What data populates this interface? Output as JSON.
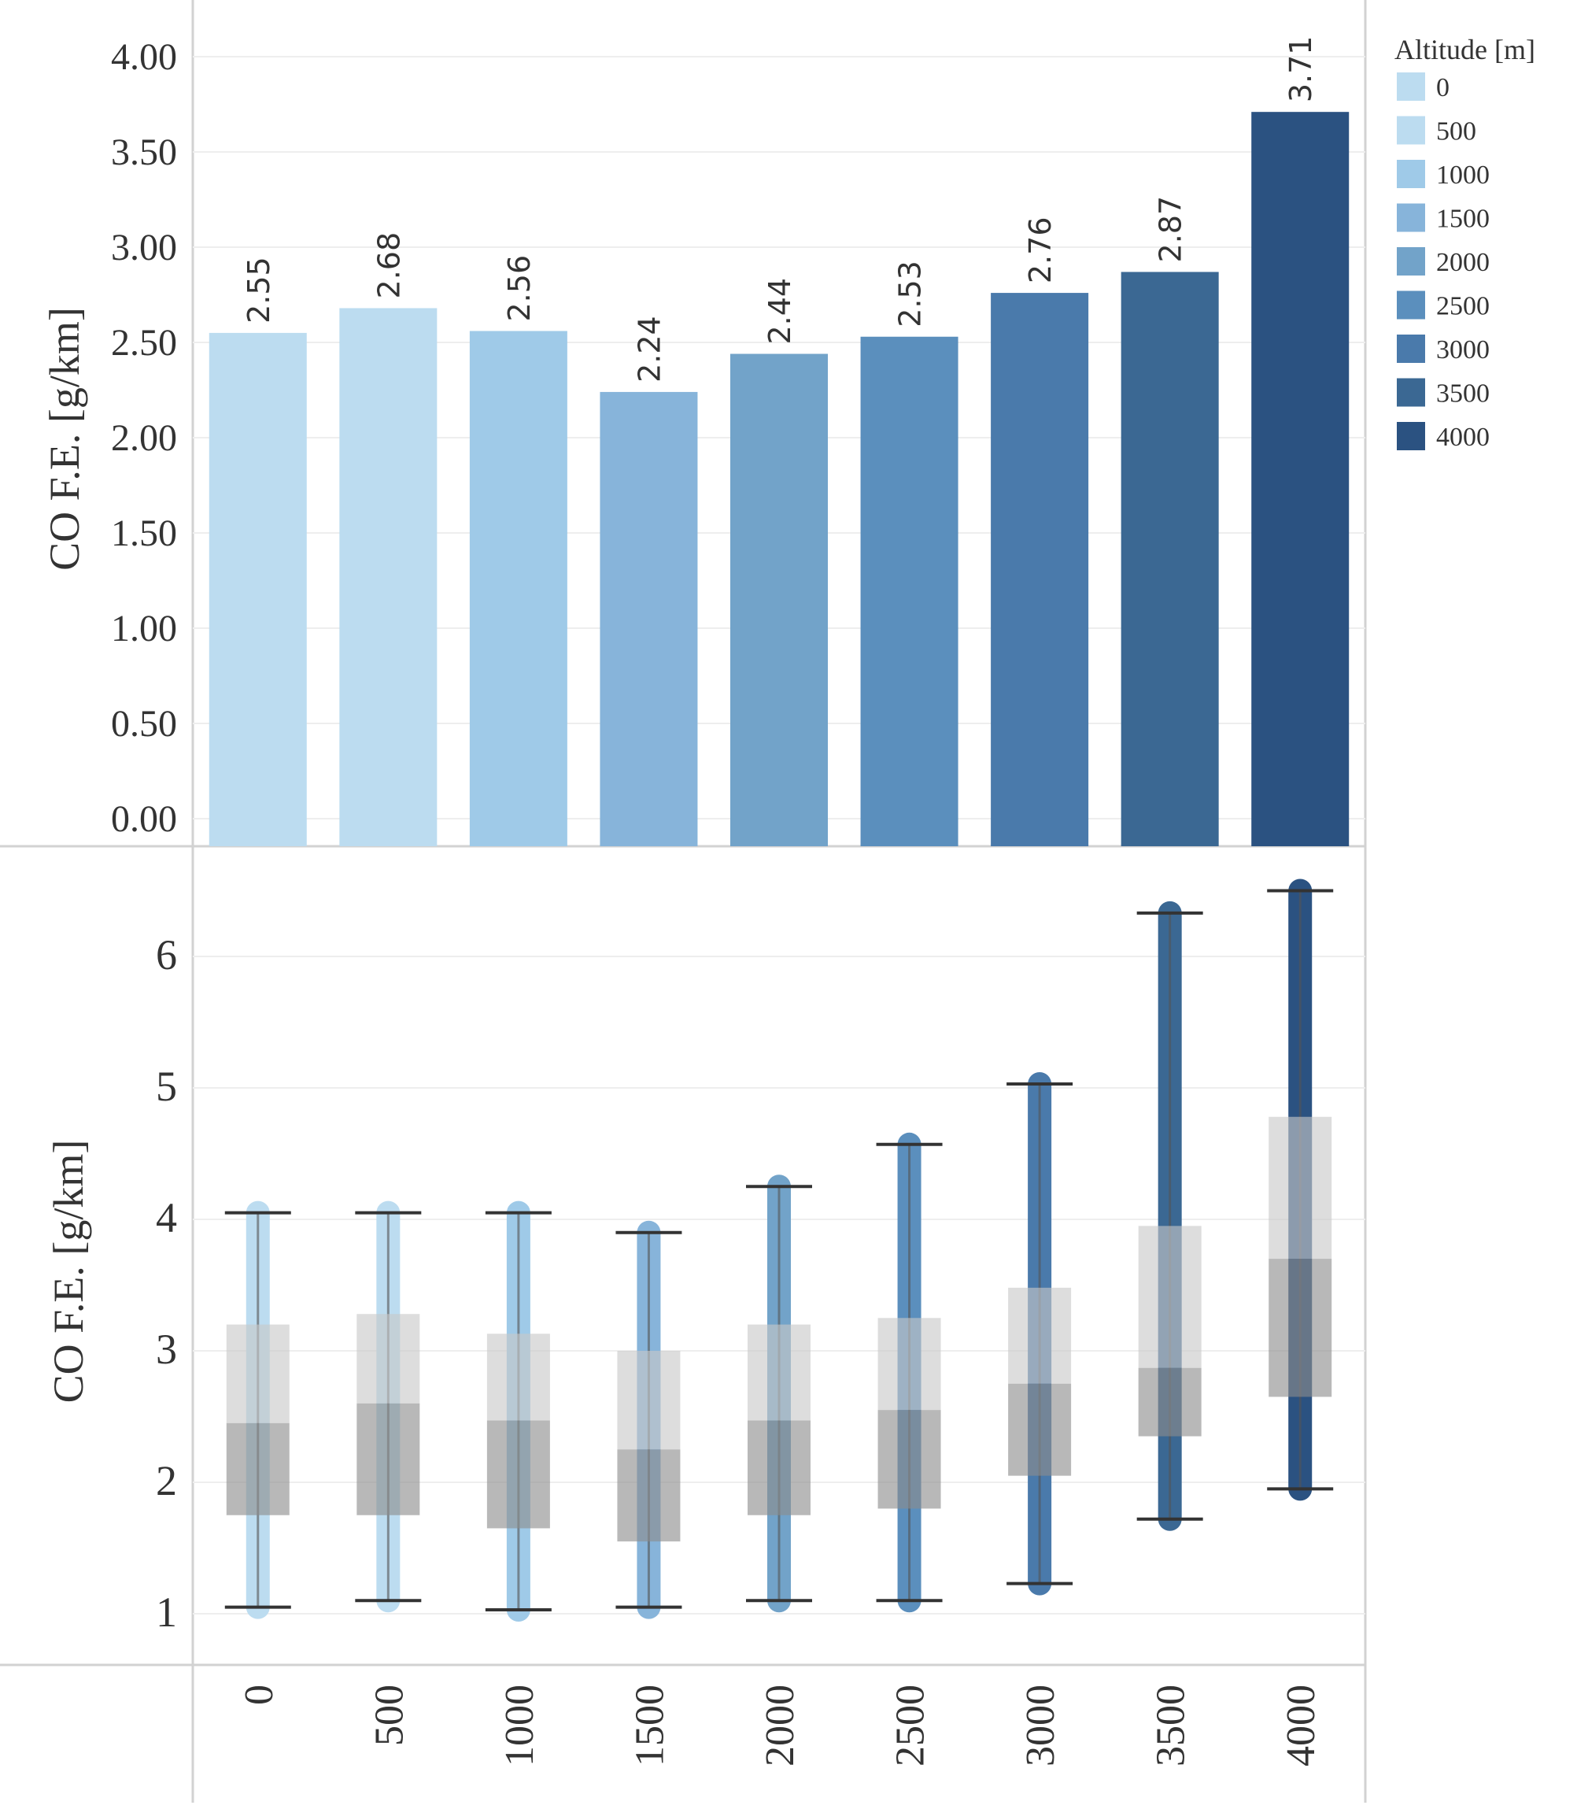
{
  "chart_data": [
    {
      "type": "bar",
      "ylabel": "CO F.E. [g/km]",
      "ylim": [
        0,
        4.0
      ],
      "yticks": [
        "0.00",
        "0.50",
        "1.00",
        "1.50",
        "2.00",
        "2.50",
        "3.00",
        "3.50",
        "4.00"
      ],
      "categories": [
        "0",
        "500",
        "1000",
        "1500",
        "2000",
        "2500",
        "3000",
        "3500",
        "4000"
      ],
      "values": [
        2.55,
        2.68,
        2.56,
        2.24,
        2.44,
        2.53,
        2.76,
        2.87,
        3.71
      ],
      "data_labels": [
        "2.55",
        "2.68",
        "2.56",
        "2.24",
        "2.44",
        "2.53",
        "2.76",
        "2.87",
        "3.71"
      ],
      "colors": [
        "#bcdcf0",
        "#bcdcf0",
        "#9fcae8",
        "#87b4da",
        "#72a3c9",
        "#5b8fbd",
        "#4a7aab",
        "#3b6893",
        "#2b5281"
      ],
      "legend": {
        "title": "Altitude [m]",
        "placement": "right",
        "items": [
          "0",
          "500",
          "1000",
          "1500",
          "2000",
          "2500",
          "3000",
          "3500",
          "4000"
        ]
      }
    },
    {
      "type": "box",
      "ylabel": "CO F.E. [g/km]",
      "ylim": [
        0.7,
        6.6
      ],
      "yticks": [
        "1",
        "2",
        "3",
        "4",
        "5",
        "6"
      ],
      "categories": [
        "0",
        "500",
        "1000",
        "1500",
        "2000",
        "2500",
        "3000",
        "3500",
        "4000"
      ],
      "xlabel": "",
      "boxes": [
        {
          "min": 1.05,
          "q1": 1.75,
          "median": 2.45,
          "q3": 3.2,
          "max": 4.05
        },
        {
          "min": 1.1,
          "q1": 1.75,
          "median": 2.6,
          "q3": 3.28,
          "max": 4.05
        },
        {
          "min": 1.03,
          "q1": 1.65,
          "median": 2.47,
          "q3": 3.13,
          "max": 4.05
        },
        {
          "min": 1.05,
          "q1": 1.55,
          "median": 2.25,
          "q3": 3.0,
          "max": 3.9
        },
        {
          "min": 1.1,
          "q1": 1.75,
          "median": 2.47,
          "q3": 3.2,
          "max": 4.25
        },
        {
          "min": 1.1,
          "q1": 1.8,
          "median": 2.55,
          "q3": 3.25,
          "max": 4.57
        },
        {
          "min": 1.23,
          "q1": 2.05,
          "median": 2.75,
          "q3": 3.48,
          "max": 5.03
        },
        {
          "min": 1.72,
          "q1": 2.35,
          "median": 2.87,
          "q3": 3.95,
          "max": 6.33
        },
        {
          "min": 1.95,
          "q1": 2.65,
          "median": 3.7,
          "q3": 4.78,
          "max": 6.5
        }
      ]
    }
  ]
}
